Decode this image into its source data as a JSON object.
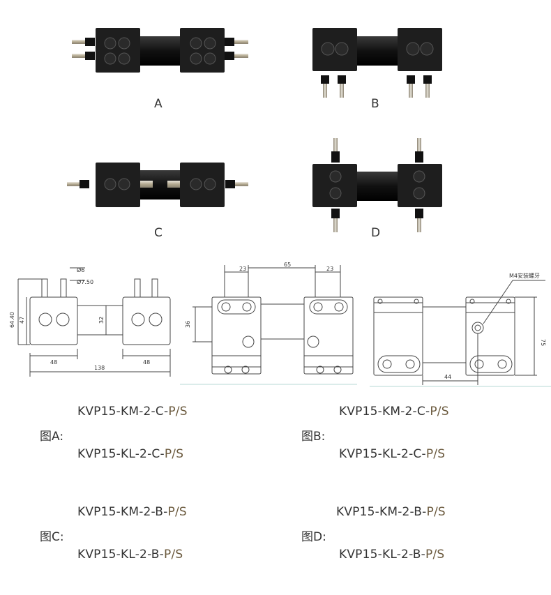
{
  "views": [
    {
      "id": "A",
      "label": "A"
    },
    {
      "id": "B",
      "label": "B"
    },
    {
      "id": "C",
      "label": "C"
    },
    {
      "id": "D",
      "label": "D"
    }
  ],
  "drawing_dims": {
    "front": {
      "phi6": "Ø6",
      "phi750": "Ø7.50",
      "h6440": "64.40",
      "h47": "47",
      "h32": "32",
      "w48a": "48",
      "w48b": "48",
      "w138": "138"
    },
    "top": {
      "d23a": "23",
      "d65": "65",
      "d23b": "23",
      "d36": "36"
    },
    "side": {
      "m4": "M4安装螺牙",
      "d75": "75",
      "d44": "44"
    }
  },
  "specs": [
    {
      "figure": "图A:",
      "models": [
        {
          "base": "KVP15-KM-2-C-",
          "suffix": "P/S"
        },
        {
          "base": "KVP15-KL-2-C-",
          "suffix": "P/S"
        }
      ]
    },
    {
      "figure": "图B:",
      "models": [
        {
          "base": "KVP15-KM-2-C-",
          "suffix": "P/S"
        },
        {
          "base": "KVP15-KL-2-C-",
          "suffix": "P/S"
        }
      ]
    },
    {
      "figure": "图C:",
      "models": [
        {
          "base": "KVP15-KM-2-B-",
          "suffix": "P/S"
        },
        {
          "base": "KVP15-KL-2-B-",
          "suffix": "P/S"
        }
      ]
    },
    {
      "figure": "图D:",
      "models": [
        {
          "base": "KVP15-KM-2-B-",
          "suffix": "P/S"
        },
        {
          "base": "KVP15-KL-2-B-",
          "suffix": "P/S"
        }
      ]
    }
  ],
  "colors": {
    "pump_body": "#1e1e1e",
    "fitting": "#b8b0a0",
    "suffix": "#6b5a3e",
    "line": "#444444"
  }
}
